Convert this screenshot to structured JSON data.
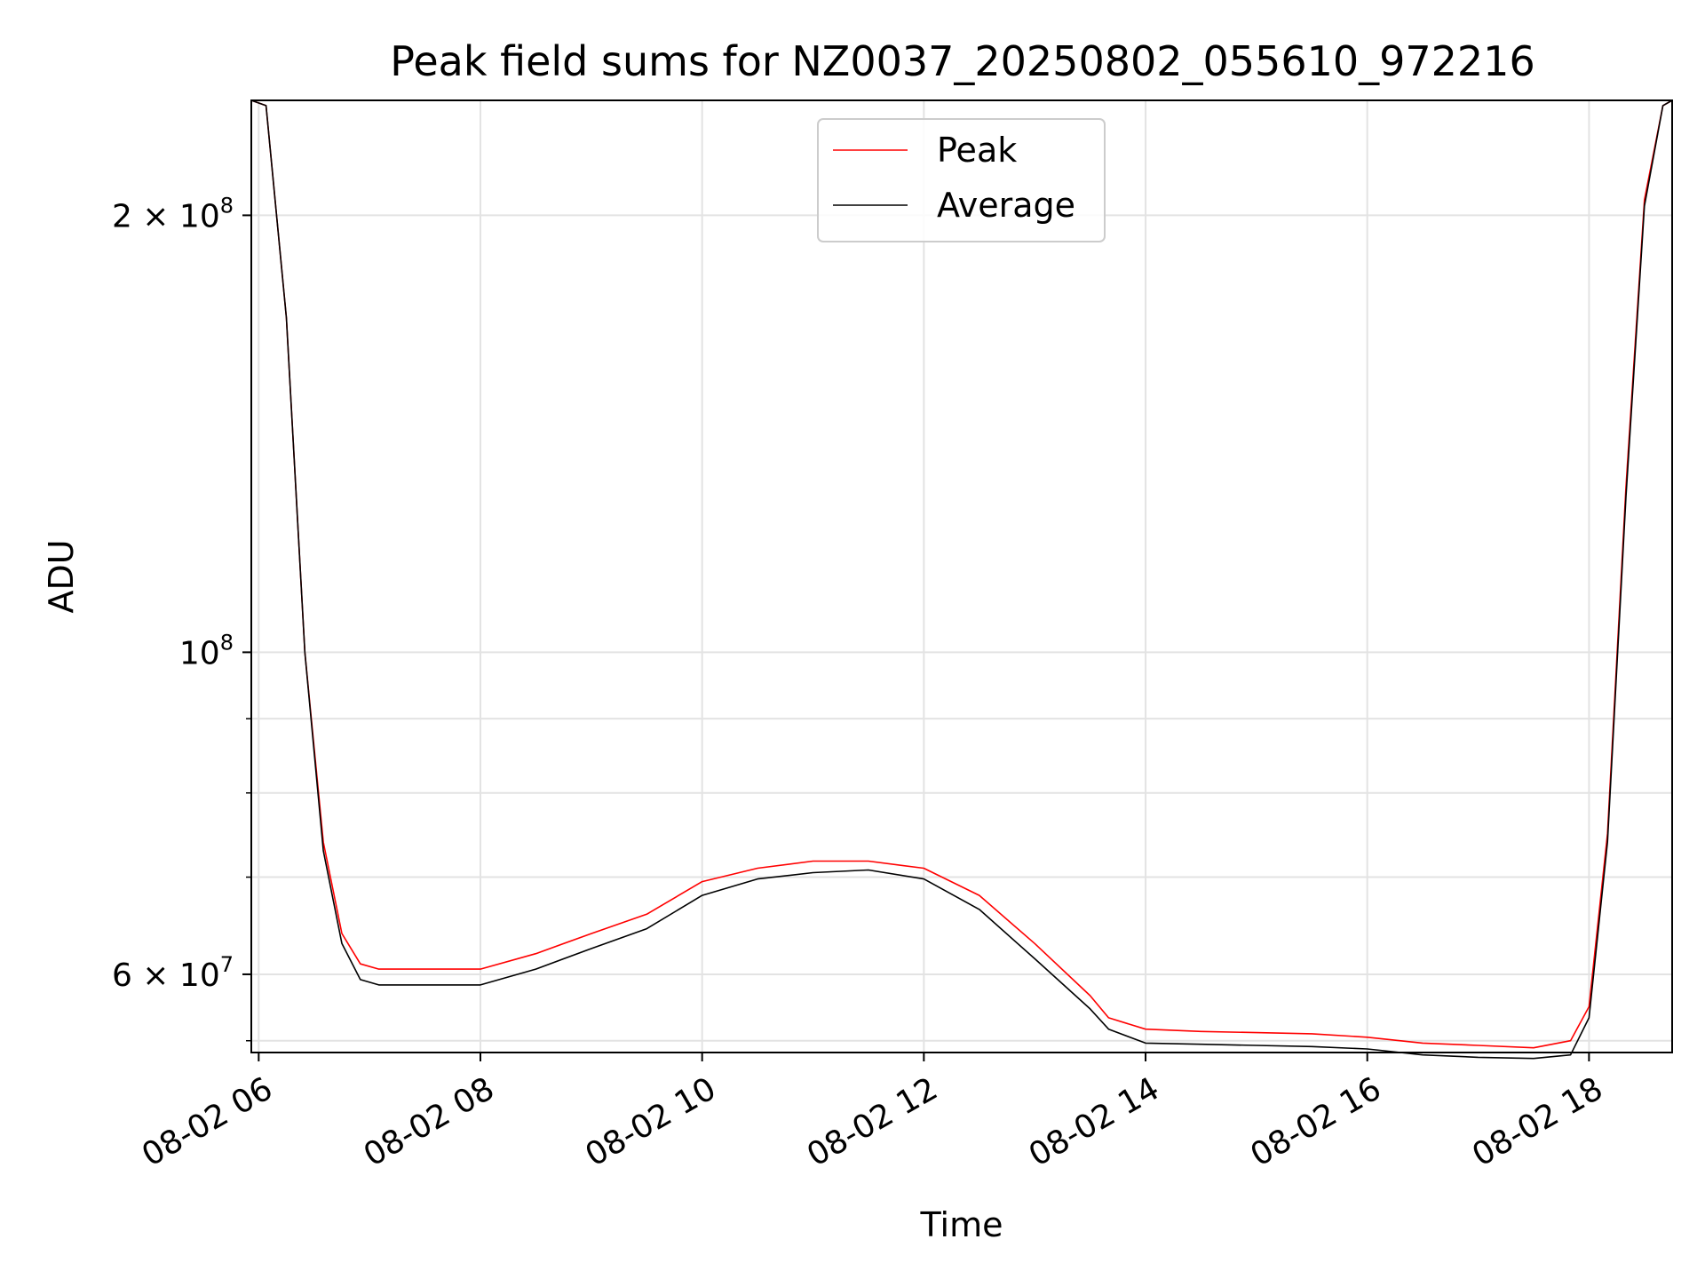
{
  "chart_data": {
    "type": "line",
    "title": "Peak field sums for NZ0037_20250802_055610_972216",
    "xlabel": "Time",
    "ylabel": "ADU",
    "yscale": "log",
    "xlim": [
      "08-02 05:56",
      "08-02 18:45"
    ],
    "ylim": [
      53000000,
      240000000
    ],
    "grid": true,
    "legend_position": "top-center",
    "x_ticks": [
      "08-02 06",
      "08-02 08",
      "08-02 10",
      "08-02 12",
      "08-02 14",
      "08-02 16",
      "08-02 18"
    ],
    "y_ticks_major": [
      {
        "value": 200000000,
        "mantissa": "2",
        "base": "10",
        "exp": "8"
      },
      {
        "value": 100000000,
        "mantissa": "",
        "base": "10",
        "exp": "8"
      },
      {
        "value": 60000000,
        "mantissa": "6",
        "base": "10",
        "exp": "7"
      }
    ],
    "y_ticks_minor": [
      90000000,
      80000000,
      70000000,
      54000000
    ],
    "series": [
      {
        "name": "Peak",
        "color": "#ff0000",
        "x": [
          "08-02 05:56",
          "08-02 06:04",
          "08-02 06:15",
          "08-02 06:25",
          "08-02 06:35",
          "08-02 06:45",
          "08-02 06:55",
          "08-02 07:05",
          "08-02 07:30",
          "08-02 08:00",
          "08-02 08:30",
          "08-02 09:00",
          "08-02 09:30",
          "08-02 10:00",
          "08-02 10:30",
          "08-02 11:00",
          "08-02 11:30",
          "08-02 12:00",
          "08-02 12:30",
          "08-02 13:00",
          "08-02 13:30",
          "08-02 13:40",
          "08-02 14:00",
          "08-02 14:30",
          "08-02 15:00",
          "08-02 15:30",
          "08-02 16:00",
          "08-02 16:30",
          "08-02 17:00",
          "08-02 17:30",
          "08-02 17:50",
          "08-02 18:00",
          "08-02 18:10",
          "08-02 18:20",
          "08-02 18:30",
          "08-02 18:40",
          "08-02 18:45"
        ],
        "y": [
          240000000,
          238000000,
          170000000,
          100000000,
          74000000,
          64000000,
          61000000,
          60500000,
          60500000,
          60500000,
          62000000,
          64000000,
          66000000,
          69500000,
          71000000,
          71800000,
          71800000,
          71000000,
          68000000,
          63000000,
          58000000,
          56000000,
          55000000,
          54800000,
          54700000,
          54600000,
          54300000,
          53800000,
          53600000,
          53400000,
          54000000,
          57000000,
          75000000,
          130000000,
          205000000,
          238000000,
          240000000
        ]
      },
      {
        "name": "Average",
        "color": "#000000",
        "x": [
          "08-02 05:56",
          "08-02 06:04",
          "08-02 06:15",
          "08-02 06:25",
          "08-02 06:35",
          "08-02 06:45",
          "08-02 06:55",
          "08-02 07:05",
          "08-02 07:30",
          "08-02 08:00",
          "08-02 08:30",
          "08-02 09:00",
          "08-02 09:30",
          "08-02 10:00",
          "08-02 10:30",
          "08-02 11:00",
          "08-02 11:30",
          "08-02 12:00",
          "08-02 12:30",
          "08-02 13:00",
          "08-02 13:30",
          "08-02 13:40",
          "08-02 14:00",
          "08-02 14:30",
          "08-02 15:00",
          "08-02 15:30",
          "08-02 16:00",
          "08-02 16:30",
          "08-02 17:00",
          "08-02 17:30",
          "08-02 17:50",
          "08-02 18:00",
          "08-02 18:10",
          "08-02 18:20",
          "08-02 18:30",
          "08-02 18:40",
          "08-02 18:45"
        ],
        "y": [
          240000000,
          238000000,
          170000000,
          100000000,
          73000000,
          63000000,
          59500000,
          59000000,
          59000000,
          59000000,
          60500000,
          62500000,
          64500000,
          68000000,
          69800000,
          70500000,
          70800000,
          69800000,
          66500000,
          61500000,
          56800000,
          55000000,
          53800000,
          53700000,
          53600000,
          53500000,
          53300000,
          52800000,
          52600000,
          52500000,
          52800000,
          56000000,
          74000000,
          128000000,
          203000000,
          238000000,
          240000000
        ]
      }
    ]
  }
}
